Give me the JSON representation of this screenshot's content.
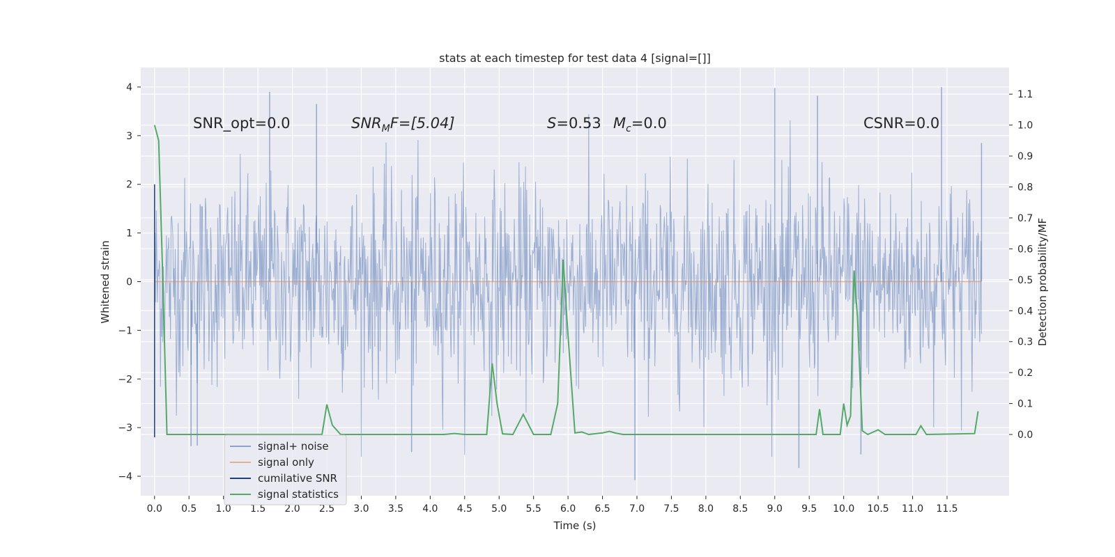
{
  "chart_data": {
    "type": "line",
    "title": "stats at each timestep for test data 4 [signal=[]]",
    "xlabel": "Time (s)",
    "ylabel": "Whitened strain",
    "y2label": "Detection probability/MF",
    "xlim": [
      -0.2,
      12.4
    ],
    "ylim": [
      -4.4,
      4.4
    ],
    "y2lim": [
      -0.198,
      1.186
    ],
    "x_ticks": [
      0.0,
      0.5,
      1.0,
      1.5,
      2.0,
      2.5,
      3.0,
      3.5,
      4.0,
      4.5,
      5.0,
      5.5,
      6.0,
      6.5,
      7.0,
      7.5,
      8.0,
      8.5,
      9.0,
      9.5,
      10.0,
      10.5,
      11.0,
      11.5
    ],
    "x_tick_labels": [
      "0.0",
      "0.5",
      "1.0",
      "1.5",
      "2.0",
      "2.5",
      "3.0",
      "3.5",
      "4.0",
      "4.5",
      "5.0",
      "5.5",
      "6.0",
      "6.5",
      "7.0",
      "7.5",
      "8.0",
      "8.5",
      "9.0",
      "9.5",
      "10.0",
      "10.5",
      "11.0",
      "11.5"
    ],
    "y_ticks": [
      4,
      3,
      2,
      1,
      0,
      -1,
      -2,
      -3,
      -4
    ],
    "y_tick_labels": [
      "4",
      "3",
      "2",
      "1",
      "0",
      "−1",
      "−2",
      "−3",
      "−4"
    ],
    "y2_ticks": [
      0.0,
      0.1,
      0.2,
      0.3,
      0.4,
      0.5,
      0.6,
      0.7,
      0.8,
      0.9,
      1.0,
      1.1
    ],
    "y2_tick_labels": [
      "0.0",
      "0.1",
      "0.2",
      "0.3",
      "0.4",
      "0.5",
      "0.6",
      "0.7",
      "0.8",
      "0.9",
      "1.0",
      "1.1"
    ],
    "grid": true,
    "legend_position": "lower-left",
    "annotations": {
      "snr_opt": "SNR_opt=0.0",
      "snr_mf_main": "SNR",
      "snr_mf_sub": "M",
      "snr_mf_rest": "F=[5.04]",
      "s_main": "S",
      "s_rest": "=0.53",
      "mc_main": "M",
      "mc_sub": "c",
      "mc_rest": "=0.0",
      "csnr": "CSNR=0.0"
    },
    "series": [
      {
        "name": "signal+ noise",
        "color": "#4c72b0",
        "axis": "left",
        "style": "dense noise, amplitude approx. -4.1 to 4.0",
        "x_range": [
          0.0,
          12.0
        ],
        "peaks": [
          {
            "x": 1.67,
            "y": 3.9
          },
          {
            "x": 2.35,
            "y": 3.65
          },
          {
            "x": 9.0,
            "y": 3.98
          },
          {
            "x": 9.62,
            "y": 3.82
          },
          {
            "x": 11.42,
            "y": 4.0
          },
          {
            "x": 0.53,
            "y": -3.38
          },
          {
            "x": 0.62,
            "y": -3.37
          },
          {
            "x": 3.73,
            "y": -3.5
          },
          {
            "x": 6.97,
            "y": -4.08
          },
          {
            "x": 9.35,
            "y": -3.83
          },
          {
            "x": 10.25,
            "y": -3.55
          },
          {
            "x": 12.0,
            "y": 2.85
          }
        ]
      },
      {
        "name": "signal only",
        "color": "#dd8452",
        "axis": "left",
        "x": [
          0.0,
          12.0
        ],
        "y": [
          0.0,
          0.0
        ]
      },
      {
        "name": "cumilative SNR",
        "color": "#1f3f7a",
        "axis": "left",
        "x": [
          0.0,
          0.0
        ],
        "y": [
          -3.2,
          2.0
        ]
      },
      {
        "name": "signal statistics",
        "color": "#55a868",
        "axis": "right",
        "x": [
          0.0,
          0.06,
          0.12,
          0.18,
          0.3,
          2.3,
          2.43,
          2.5,
          2.58,
          2.7,
          4.2,
          4.35,
          4.5,
          4.65,
          4.82,
          4.9,
          4.97,
          5.05,
          5.2,
          5.35,
          5.5,
          5.6,
          5.75,
          5.85,
          5.93,
          6.0,
          6.1,
          6.2,
          6.3,
          6.5,
          6.6,
          6.7,
          6.8,
          9.6,
          9.65,
          9.7,
          9.8,
          9.95,
          10.0,
          10.05,
          10.1,
          10.15,
          10.2,
          10.27,
          10.35,
          10.5,
          10.6,
          10.7,
          10.8,
          11.05,
          11.12,
          11.2,
          11.9,
          11.95
        ],
        "y": [
          1.0,
          0.95,
          0.5,
          0.0,
          0.0,
          0.0,
          0.0,
          0.097,
          0.03,
          0.0,
          0.0,
          0.003,
          0.0,
          0.0,
          0.0,
          0.23,
          0.1,
          0.002,
          0.0,
          0.065,
          0.0,
          0.0,
          0.0,
          0.1,
          0.565,
          0.32,
          0.005,
          0.008,
          0.0,
          0.005,
          0.01,
          0.004,
          0.0,
          0.0,
          0.082,
          0.0,
          0.0,
          0.0,
          0.1,
          0.03,
          0.06,
          0.53,
          0.38,
          0.012,
          0.0,
          0.015,
          0.0,
          0.0,
          0.0,
          0.0,
          0.028,
          0.0,
          0.003,
          0.075
        ]
      }
    ]
  }
}
